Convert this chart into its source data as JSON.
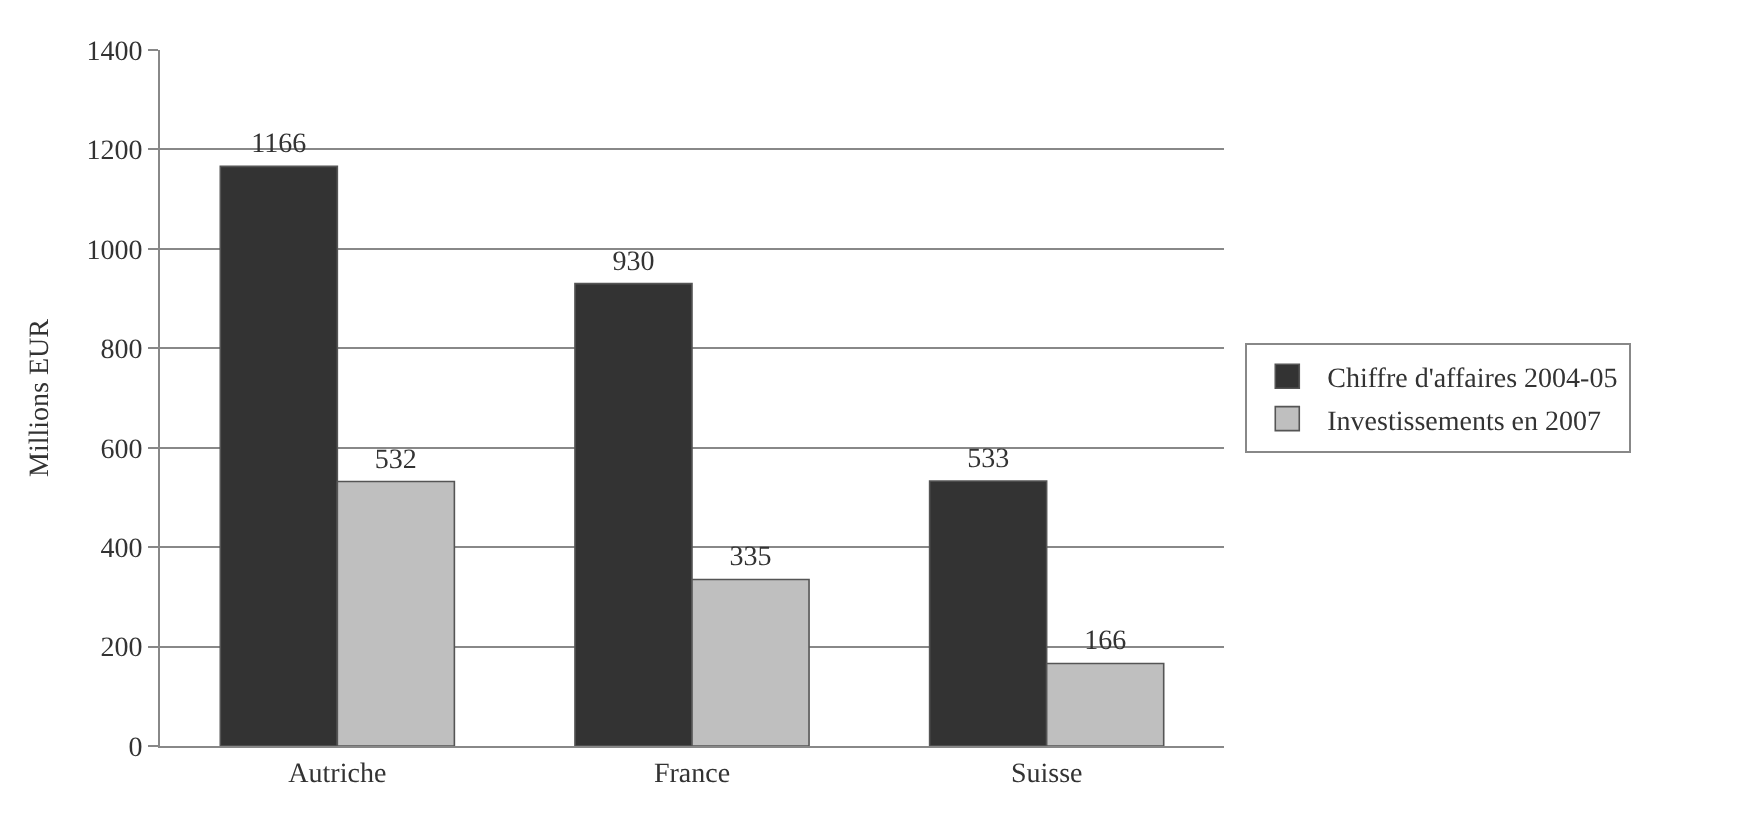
{
  "chart_data": {
    "type": "bar",
    "ylabel": "Millions EUR",
    "categories": [
      "Autriche",
      "France",
      "Suisse"
    ],
    "series": [
      {
        "name": "Chiffre d'affaires 2004-05",
        "color": "#333333",
        "values": [
          1166,
          930,
          533
        ]
      },
      {
        "name": "Investissements en 2007",
        "color": "#bfbfbf",
        "values": [
          532,
          335,
          166
        ]
      }
    ],
    "ylim": [
      0,
      1400
    ],
    "yticks": [
      0,
      200,
      400,
      600,
      800,
      1000,
      1200,
      1400
    ],
    "grid": "y",
    "legend": "right",
    "data_labels": true
  }
}
